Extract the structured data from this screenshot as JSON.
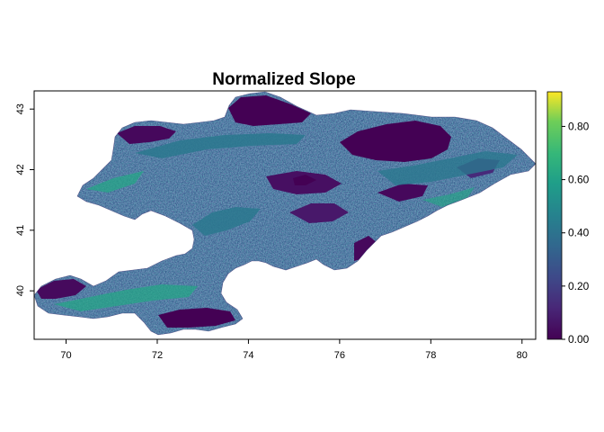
{
  "map": {
    "title": "Normalized Slope",
    "x_axis": {
      "ticks": [
        "70",
        "72",
        "74",
        "76",
        "78",
        "80"
      ],
      "tick_values": [
        70,
        72,
        74,
        76,
        78,
        80
      ],
      "range": [
        69.3,
        80.3
      ]
    },
    "y_axis": {
      "ticks": [
        "40",
        "41",
        "42",
        "43"
      ],
      "tick_values": [
        40,
        41,
        42,
        43
      ],
      "range": [
        39.2,
        43.3
      ]
    },
    "legend": {
      "ticks": [
        "0.00",
        "0.20",
        "0.40",
        "0.60",
        "0.80"
      ],
      "tick_values": [
        0.0,
        0.2,
        0.4,
        0.6,
        0.8
      ],
      "range": [
        0.0,
        0.93
      ],
      "colormap": "viridis"
    },
    "colors": {
      "low": "#440154",
      "mid_low": "#3b528b",
      "mid": "#21908d",
      "mid_high": "#5dc963",
      "high": "#fde725"
    }
  }
}
